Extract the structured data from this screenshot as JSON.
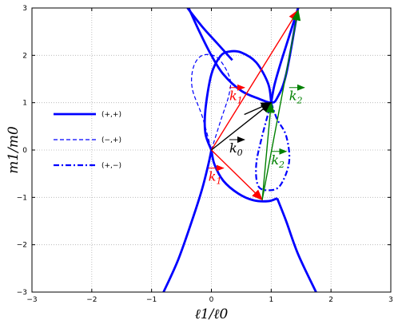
{
  "chart_data": {
    "type": "line",
    "xlabel": "ℓ1/ℓ0",
    "ylabel": "m1/m0",
    "xlim": [
      -3,
      3
    ],
    "ylim": [
      -3,
      3
    ],
    "xticks": [
      -3,
      -2,
      -1,
      0,
      1,
      2,
      3
    ],
    "yticks": [
      -3,
      -2,
      -1,
      0,
      1,
      2,
      3
    ],
    "grid": "dotted",
    "legend_position": "left",
    "legend": [
      {
        "label": "(+,+)",
        "style": "solid"
      },
      {
        "label": "(−,+)",
        "style": "dashed"
      },
      {
        "label": "(+,−)",
        "style": "dashdot"
      }
    ],
    "curve_color": "#0000ff",
    "curves": [
      {
        "style": "solid",
        "points": [
          [
            -0.38,
            3
          ],
          [
            -0.2,
            2.5
          ],
          [
            0,
            2.0
          ],
          [
            0.2,
            1.6
          ],
          [
            0.5,
            1.25
          ],
          [
            0.8,
            1.08
          ],
          [
            1,
            1
          ],
          [
            1.1,
            1.1
          ],
          [
            1.25,
            1.6
          ],
          [
            1.45,
            3
          ]
        ]
      },
      {
        "style": "solid",
        "points": [
          [
            0,
            0
          ],
          [
            -0.1,
            0.35
          ],
          [
            -0.1,
            0.85
          ],
          [
            0,
            1.6
          ],
          [
            0.15,
            1.98
          ],
          [
            0.3,
            2.08
          ],
          [
            0.5,
            2.06
          ],
          [
            0.75,
            1.85
          ],
          [
            0.95,
            1.4
          ],
          [
            1,
            1
          ]
        ]
      },
      {
        "style": "solid",
        "points": [
          [
            0,
            0
          ],
          [
            0.05,
            -0.3
          ],
          [
            0.2,
            -0.65
          ],
          [
            0.45,
            -0.92
          ],
          [
            0.7,
            -1.06
          ],
          [
            0.95,
            -1.08
          ],
          [
            1.1,
            -1.02
          ]
        ]
      },
      {
        "style": "solid",
        "points": [
          [
            0,
            0
          ],
          [
            -0.05,
            -0.3
          ],
          [
            -0.15,
            -0.8
          ],
          [
            -0.3,
            -1.4
          ],
          [
            -0.55,
            -2.3
          ],
          [
            -0.8,
            -3
          ]
        ]
      },
      {
        "style": "solid",
        "points": [
          [
            1.1,
            -1.02
          ],
          [
            1.25,
            -1.5
          ],
          [
            1.45,
            -2.2
          ],
          [
            1.75,
            -3
          ]
        ]
      },
      {
        "style": "solid",
        "points": [
          [
            1.45,
            3
          ],
          [
            1.3,
            2.4
          ],
          [
            1.15,
            1.8
          ],
          [
            1.05,
            1.35
          ],
          [
            1,
            1
          ]
        ]
      },
      {
        "style": "solid",
        "points": [
          [
            -0.4,
            3
          ],
          [
            -0.15,
            2.6
          ],
          [
            0.1,
            2.25
          ],
          [
            0.35,
            1.9
          ]
        ]
      },
      {
        "style": "dashed",
        "points": [
          [
            0,
            0
          ],
          [
            0.15,
            0.6
          ],
          [
            0.3,
            1.2
          ],
          [
            0.3,
            1.55
          ],
          [
            0.1,
            1.95
          ],
          [
            -0.15,
            2.0
          ],
          [
            -0.3,
            1.75
          ],
          [
            -0.32,
            1.3
          ],
          [
            -0.15,
            0.7
          ],
          [
            0,
            0
          ]
        ]
      },
      {
        "style": "dashdot",
        "points": [
          [
            1,
            1
          ],
          [
            1.1,
            0.65
          ],
          [
            1.25,
            0.3
          ],
          [
            1.3,
            -0.25
          ],
          [
            1.15,
            -0.75
          ],
          [
            0.95,
            -0.85
          ],
          [
            0.78,
            -0.75
          ],
          [
            0.75,
            -0.3
          ],
          [
            0.85,
            0.3
          ],
          [
            1,
            1
          ]
        ]
      }
    ],
    "vectors": [
      {
        "label": "k1",
        "color": "#ff0000",
        "from": [
          0,
          0
        ],
        "to": [
          1.45,
          2.95
        ]
      },
      {
        "label": "",
        "color": "#ff0000",
        "from": [
          0,
          0
        ],
        "to": [
          0.85,
          -1.05
        ]
      },
      {
        "label": "k0",
        "color": "#000000",
        "from": [
          0,
          0
        ],
        "to": [
          1,
          1
        ]
      },
      {
        "label": "k2",
        "color": "#008000",
        "from": [
          0.85,
          -1.05
        ],
        "to": [
          1.45,
          2.95
        ]
      },
      {
        "label": "",
        "color": "#008000",
        "from": [
          0.85,
          -1.05
        ],
        "to": [
          1,
          1
        ]
      },
      {
        "label": "",
        "color": "#000000",
        "from": [
          0.55,
          0.75
        ],
        "to": [
          1,
          1
        ]
      }
    ],
    "vector_labels": [
      {
        "text": "k1",
        "color": "#ff0000",
        "at": [
          0.3,
          1.05
        ]
      },
      {
        "text": "k1",
        "color": "#ff0000",
        "at": [
          -0.05,
          -0.65
        ]
      },
      {
        "text": "k0",
        "color": "#000000",
        "at": [
          0.3,
          -0.05
        ]
      },
      {
        "text": "k2",
        "color": "#008000",
        "at": [
          1.3,
          1.05
        ]
      },
      {
        "text": "k2",
        "color": "#008000",
        "at": [
          1.0,
          -0.3
        ]
      }
    ]
  }
}
